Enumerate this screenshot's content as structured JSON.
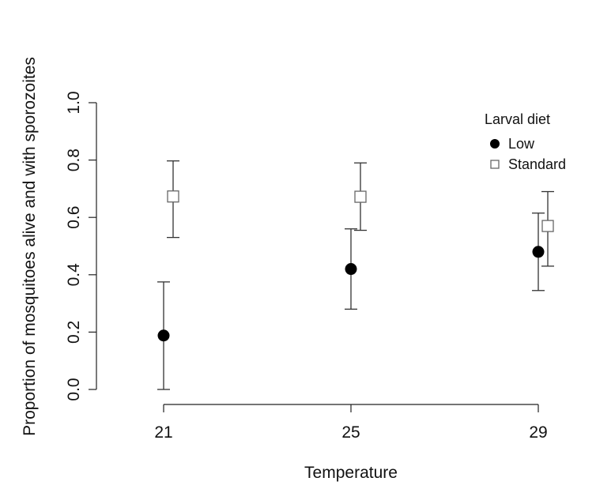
{
  "chart_data": {
    "type": "scatter",
    "xlabel": "Temperature",
    "ylabel": "Proportion of mosquitoes alive and with sporozoites",
    "categories": [
      "21",
      "25",
      "29"
    ],
    "ylim": [
      0.0,
      1.0
    ],
    "y_ticks": [
      "0.0",
      "0.2",
      "0.4",
      "0.6",
      "0.8",
      "1.0"
    ],
    "grid": false,
    "legend": {
      "title": "Larval diet",
      "position": "top-right"
    },
    "series": [
      {
        "name": "Low",
        "marker": "filled-circle",
        "color": "#000000",
        "values": [
          0.188,
          0.42,
          0.48
        ],
        "lower": [
          0.0,
          0.28,
          0.345
        ],
        "upper": [
          0.375,
          0.56,
          0.615
        ]
      },
      {
        "name": "Standard",
        "marker": "open-square",
        "color": "#666666",
        "values": [
          0.673,
          0.672,
          0.57
        ],
        "lower": [
          0.53,
          0.555,
          0.43
        ],
        "upper": [
          0.797,
          0.79,
          0.69
        ]
      }
    ]
  }
}
